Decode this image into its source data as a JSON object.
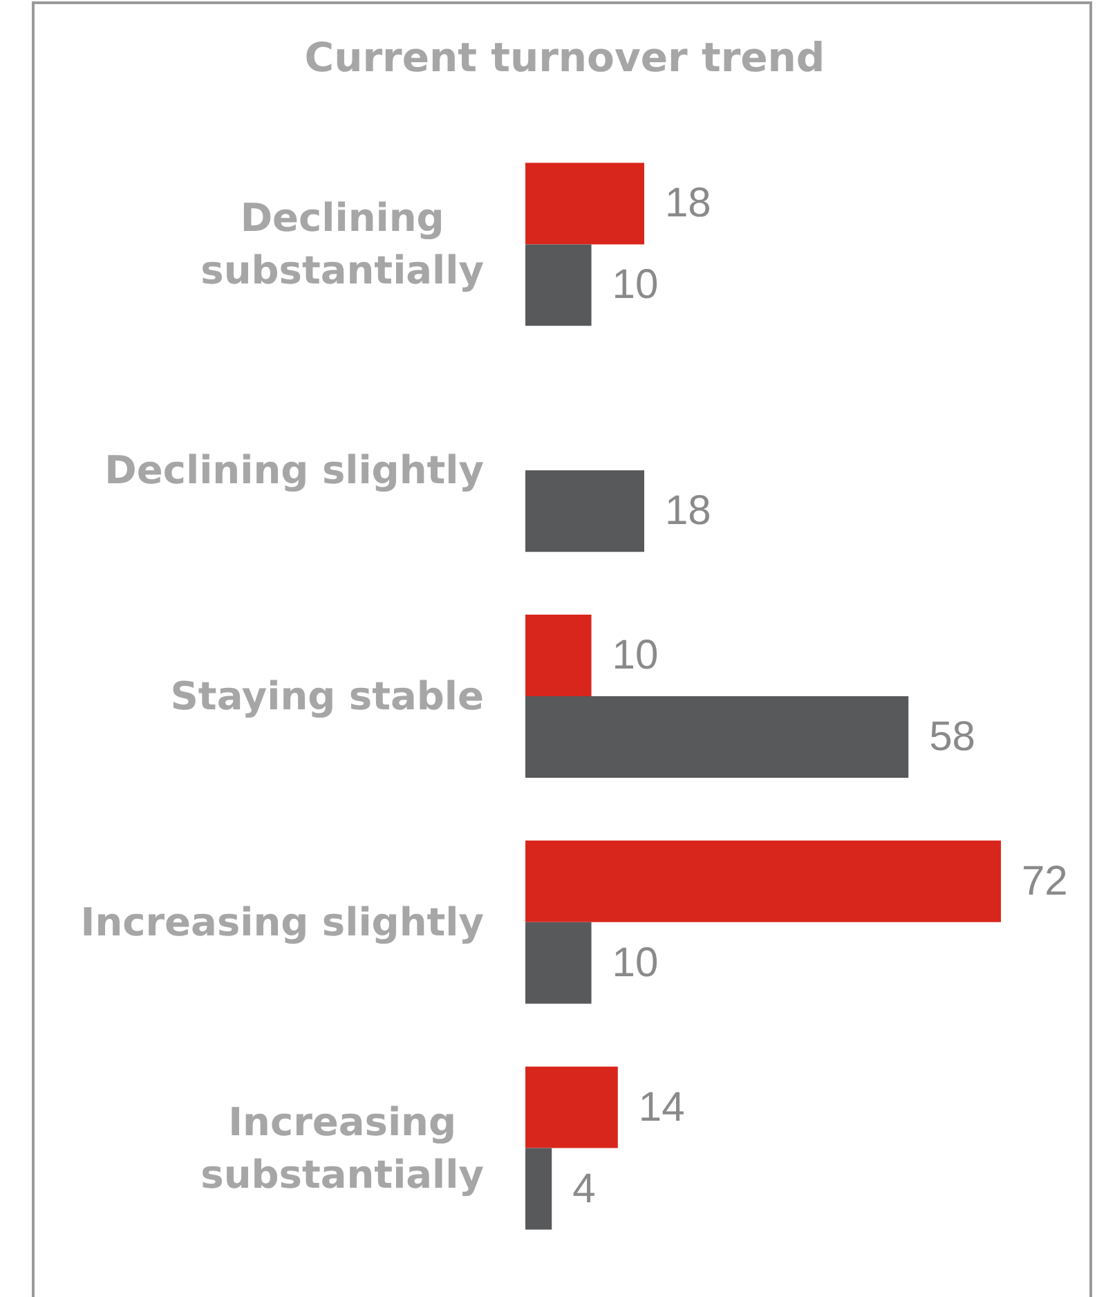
{
  "chart_data": {
    "type": "bar",
    "orientation": "horizontal",
    "title": "Current turnover trend",
    "categories": [
      "Declining substantially",
      "Declining slightly",
      "Staying stable",
      "Increasing slightly",
      "Increasing substantially"
    ],
    "series": [
      {
        "color": "#d9261c",
        "values": [
          18,
          null,
          10,
          72,
          14
        ]
      },
      {
        "color": "#58595b",
        "values": [
          10,
          18,
          58,
          10,
          4
        ]
      }
    ],
    "data_labels": true
  }
}
